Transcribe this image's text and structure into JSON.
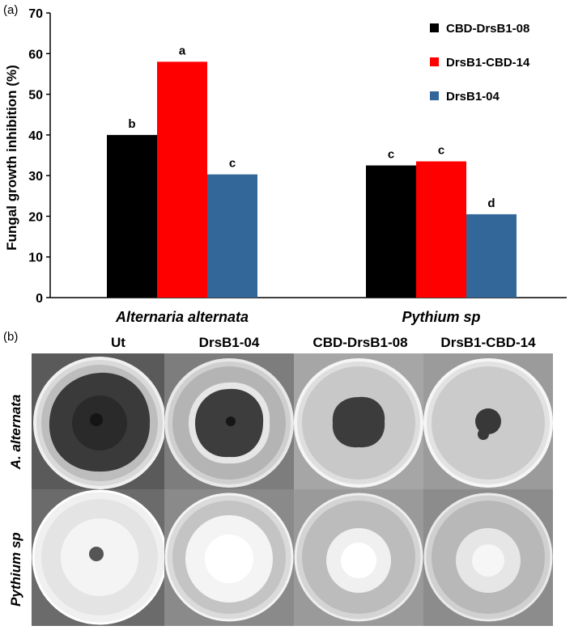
{
  "panel_a_label": "(a)",
  "panel_b_label": "(b)",
  "chart_data": {
    "type": "bar",
    "title": "",
    "xlabel": "",
    "ylabel": "Fungal growth inhibition (%)",
    "ylim": [
      0,
      70
    ],
    "yticks": [
      "0",
      "10",
      "20",
      "30",
      "40",
      "50",
      "60",
      "70"
    ],
    "categories": [
      "Alternaria alternata",
      "Pythium sp"
    ],
    "series": [
      {
        "name": "CBD-DrsB1-08",
        "color": "#000000",
        "values": [
          40,
          32.5
        ],
        "labels": [
          "b",
          "c"
        ]
      },
      {
        "name": "DrsB1-CBD-14",
        "color": "#ff0000",
        "values": [
          58,
          33.5
        ],
        "labels": [
          "a",
          "c"
        ]
      },
      {
        "name": "DrsB1-04",
        "color": "#336699",
        "values": [
          30.3,
          20.5
        ],
        "labels": [
          "c",
          "d"
        ]
      }
    ],
    "legend_position": "top-right"
  },
  "photo_panel": {
    "columns": [
      "Ut",
      "DrsB1-04",
      "CBD-DrsB1-08",
      "DrsB1-CBD-14"
    ],
    "rows": [
      "A. alternata",
      "Pythium sp"
    ]
  }
}
